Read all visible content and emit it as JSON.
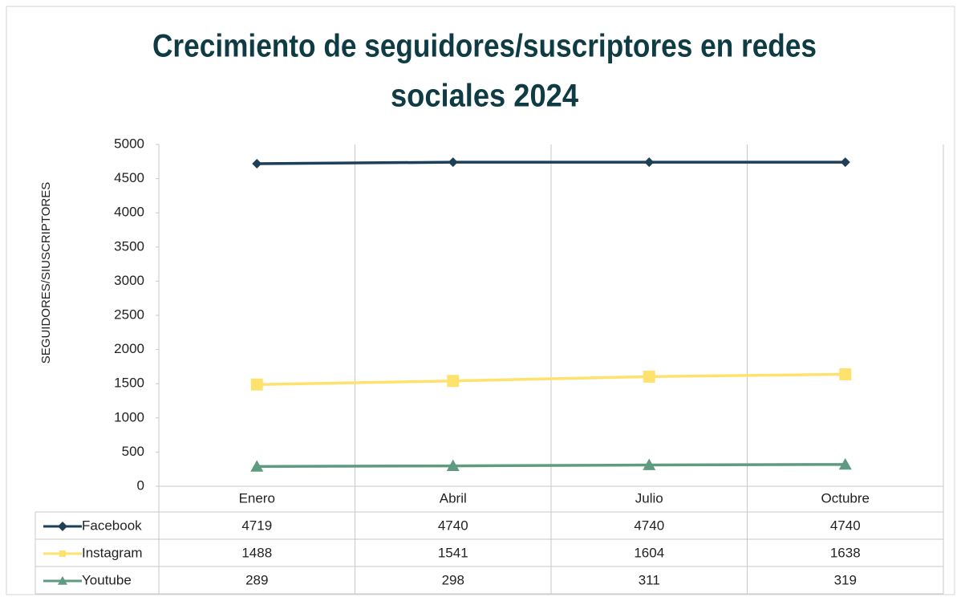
{
  "chart_data": {
    "type": "line",
    "title": [
      "Crecimiento de seguidores/suscriptores en redes",
      "sociales 2024"
    ],
    "ylabel": "SEGUIDORES/SIUSCRIPTORES",
    "categories": [
      "Enero",
      "Abril",
      "Julio",
      "Octubre"
    ],
    "series": [
      {
        "name": "Facebook",
        "color": "#1d3f58",
        "marker": "diamond",
        "values": [
          4719,
          4740,
          4740,
          4740
        ]
      },
      {
        "name": "Instagram",
        "color": "#ffe26e",
        "marker": "square",
        "values": [
          1488,
          1541,
          1604,
          1638
        ]
      },
      {
        "name": "Youtube",
        "color": "#5e9b80",
        "marker": "triangle",
        "values": [
          289,
          298,
          311,
          319
        ]
      }
    ],
    "ylim": [
      0,
      5000
    ],
    "yticks": [
      0,
      500,
      1000,
      1500,
      2000,
      2500,
      3000,
      3500,
      4000,
      4500,
      5000
    ],
    "xgrid": true,
    "data_table": true
  }
}
